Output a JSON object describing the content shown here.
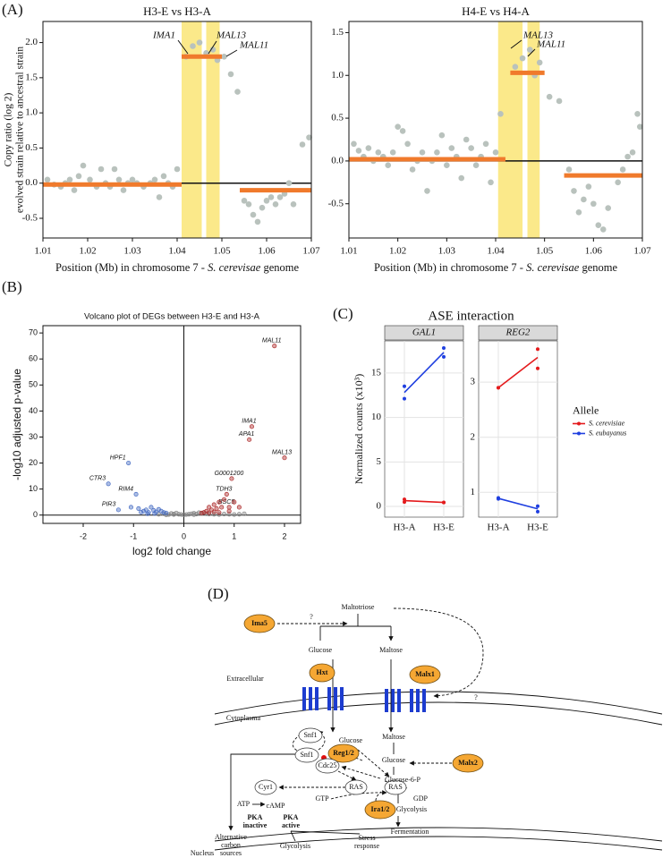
{
  "panel_labels": [
    "(A)",
    "(B)",
    "(C)",
    "(D)"
  ],
  "chart_data": [
    {
      "type": "scatter",
      "title": "H3-E vs H3-A",
      "x_label": [
        "Position (Mb) in chromosome 7 - ",
        "S. cerevisae",
        " genome"
      ],
      "y_label": [
        "Copy ratio (log 2)",
        "evolved strain relative to ancestral strain"
      ],
      "xlim": [
        1.01,
        1.07
      ],
      "ylim": [
        -0.78,
        2.3
      ],
      "xticks": [
        1.01,
        1.02,
        1.03,
        1.04,
        1.05,
        1.06,
        1.07
      ],
      "yticks": [
        -0.5,
        {
          "value": 0,
          "label": "0.0"
        },
        0.5,
        {
          "value": 1,
          "label": "1.0"
        },
        1.5,
        {
          "value": 2,
          "label": "2.0"
        }
      ],
      "hline": 0,
      "point_color": "#b9c2bd",
      "x": [
        1.011,
        1.0125,
        1.014,
        1.015,
        1.016,
        1.017,
        1.018,
        1.019,
        1.0205,
        1.022,
        1.023,
        1.024,
        1.025,
        1.026,
        1.027,
        1.028,
        1.029,
        1.03,
        1.031,
        1.0325,
        1.034,
        1.035,
        1.036,
        1.037,
        1.038,
        1.039,
        1.04,
        1.042,
        1.0435,
        1.045,
        1.0465,
        1.048,
        1.049,
        1.0505,
        1.052,
        1.0535,
        1.055,
        1.056,
        1.057,
        1.058,
        1.059,
        1.06,
        1.061,
        1.062,
        1.063,
        1.064,
        1.065,
        1.066,
        1.068,
        1.0695
      ],
      "y": [
        0.05,
        -0.02,
        -0.05,
        0.0,
        0.05,
        -0.1,
        0.1,
        0.25,
        0.05,
        -0.05,
        0.2,
        0.0,
        -0.05,
        0.2,
        0.05,
        -0.1,
        0.0,
        0.05,
        0.0,
        -0.05,
        0.0,
        0.05,
        -0.2,
        0.1,
        0.0,
        -0.05,
        0.2,
        1.8,
        1.95,
        2.0,
        1.85,
        1.9,
        1.75,
        1.8,
        1.55,
        1.3,
        -0.25,
        -0.3,
        -0.45,
        -0.55,
        -0.35,
        -0.25,
        -0.2,
        -0.3,
        -0.2,
        -0.15,
        0.0,
        -0.3,
        0.55,
        0.65
      ],
      "segments": {
        "color": "#f07a2c",
        "x0": [
          1.01,
          1.041,
          1.054
        ],
        "x1": [
          1.041,
          1.05,
          1.07
        ],
        "y": [
          -0.02,
          1.8,
          -0.1
        ]
      },
      "highlight": {
        "color": "#fbe98a",
        "x0": [
          1.041,
          1.0465
        ],
        "x1": [
          1.0455,
          1.0495
        ]
      },
      "annotations": [
        "IMA1",
        "MAL13",
        "MAL11"
      ]
    },
    {
      "type": "scatter",
      "title": "H4-E vs H4-A",
      "x_label": [
        "Position (Mb) in chromosome 7 - ",
        "S. cerevisae",
        " genome"
      ],
      "xlim": [
        1.01,
        1.07
      ],
      "ylim": [
        -0.9,
        1.63
      ],
      "xticks": [
        1.01,
        1.02,
        1.03,
        1.04,
        1.05,
        1.06,
        1.07
      ],
      "yticks": [
        -0.5,
        {
          "value": 0,
          "label": "0.0"
        },
        0.5,
        {
          "value": 1,
          "label": "1.0"
        },
        1.5
      ],
      "hline": 0,
      "point_color": "#b9c2bd",
      "x": [
        1.011,
        1.012,
        1.013,
        1.014,
        1.015,
        1.016,
        1.017,
        1.018,
        1.019,
        1.02,
        1.021,
        1.022,
        1.023,
        1.024,
        1.025,
        1.026,
        1.027,
        1.028,
        1.029,
        1.03,
        1.031,
        1.032,
        1.033,
        1.034,
        1.035,
        1.036,
        1.037,
        1.038,
        1.039,
        1.04,
        1.041,
        1.044,
        1.0455,
        1.047,
        1.048,
        1.049,
        1.051,
        1.053,
        1.055,
        1.056,
        1.057,
        1.058,
        1.059,
        1.06,
        1.061,
        1.062,
        1.063,
        1.065,
        1.066,
        1.067,
        1.068,
        1.069,
        1.0695
      ],
      "y": [
        0.2,
        0.12,
        0.05,
        0.15,
        0.0,
        0.1,
        0.05,
        -0.05,
        0.1,
        0.4,
        0.35,
        0.2,
        -0.1,
        0.0,
        0.1,
        -0.35,
        0.0,
        0.1,
        0.3,
        -0.05,
        0.15,
        0.05,
        -0.2,
        0.25,
        0.15,
        -0.05,
        0.05,
        0.2,
        -0.25,
        0.1,
        0.55,
        1.1,
        1.2,
        1.3,
        1.0,
        1.15,
        0.75,
        0.7,
        -0.1,
        -0.35,
        -0.6,
        -0.45,
        -0.3,
        -0.5,
        -0.75,
        -0.8,
        -0.55,
        -0.25,
        -0.1,
        0.05,
        0.1,
        0.55,
        0.4
      ],
      "segments": {
        "color": "#f07a2c",
        "x0": [
          1.01,
          1.043,
          1.054
        ],
        "x1": [
          1.042,
          1.05,
          1.07
        ],
        "y": [
          0.02,
          1.03,
          -0.17
        ]
      },
      "highlight": {
        "color": "#fbe98a",
        "x0": [
          1.0405,
          1.0465
        ],
        "x1": [
          1.0455,
          1.049
        ]
      },
      "annotations": [
        "MAL13",
        "MAL11"
      ]
    },
    {
      "type": "scatter",
      "title": "Volcano plot of DEGs between H3-E and H3-A",
      "x_label": "log2 fold change",
      "y_label": "-log10 adjusted p-value",
      "xlim": [
        -2.8,
        2.32
      ],
      "ylim": [
        -3.2,
        72.8
      ],
      "xticks": [
        -2,
        -1,
        0,
        1,
        2
      ],
      "yticks": [
        0,
        10,
        20,
        30,
        40,
        50,
        60,
        70
      ],
      "hline": 0,
      "vline": 0,
      "series": [
        {
          "color": "#888888",
          "x": [
            -0.5,
            -0.4,
            -0.3,
            -0.25,
            -0.2,
            -0.15,
            -0.1,
            -0.05,
            0,
            0.05,
            0.1,
            0.15,
            0.2,
            0.25,
            0.3,
            0.35,
            0.4,
            0.45,
            0.5,
            0.6,
            0.7,
            0.8,
            0.9,
            1.0,
            1.1,
            1.2,
            -0.35,
            -0.2,
            0.2
          ],
          "y": [
            0.3,
            0.5,
            0.2,
            0.6,
            0.4,
            0.8,
            0.3,
            0.2,
            0.1,
            0.2,
            0.3,
            0.5,
            0.7,
            0.4,
            0.9,
            0.6,
            1,
            0.5,
            0.4,
            0.3,
            0.2,
            0.4,
            0.3,
            0.2,
            0.3,
            0.5,
            0.1,
            0.2,
            0.15
          ]
        },
        {
          "color": "#4a6fc4",
          "x": [
            -1.1,
            -1.5,
            -0.95,
            -1.3,
            -1.05,
            -0.9,
            -0.8,
            -0.75,
            -0.7,
            -0.65,
            -0.6,
            -0.55,
            -0.5,
            -0.45,
            -0.4,
            -0.35,
            -0.58,
            -0.72,
            -0.85
          ],
          "y": [
            20,
            12,
            8,
            2,
            3,
            2.5,
            1.5,
            2,
            1,
            3,
            1.8,
            1.2,
            2.2,
            1.5,
            1,
            0.8,
            0.6,
            0.5,
            1.1
          ],
          "labels": [
            "HPF1",
            "CTR3",
            "RIM4",
            "PIR3",
            null,
            null,
            null,
            null,
            null,
            null,
            null,
            null,
            null,
            null,
            null,
            null,
            null,
            null,
            null
          ]
        },
        {
          "color": "#b03030",
          "x": [
            1.8,
            1.35,
            1.3,
            2.0,
            0.95,
            0.85,
            0.9,
            0.5,
            0.55,
            0.6,
            0.65,
            0.7,
            0.75,
            0.8,
            0.45,
            0.4,
            0.35,
            1.0,
            1.1,
            0.9,
            0.7,
            0.6,
            0.5
          ],
          "y": [
            65,
            34,
            29,
            22,
            14,
            8,
            3,
            3,
            2,
            4,
            2.5,
            5,
            3,
            6,
            1.5,
            1,
            0.8,
            5,
            3,
            1.5,
            1,
            1.2,
            0.9
          ],
          "labels": [
            "MAL11",
            "IMA1",
            "APA1",
            "MAL13",
            "G0001200",
            "TDH3",
            "BSC5",
            null,
            null,
            null,
            null,
            null,
            null,
            null,
            null,
            null,
            null,
            null,
            null,
            null,
            null,
            null,
            null
          ]
        }
      ]
    },
    {
      "type": "line",
      "title": "ASE interaction",
      "y_label": "Normalized counts (x10³)",
      "categories": [
        "H3-A",
        "H3-E"
      ],
      "grid": true,
      "legend": "right",
      "legend_title": "Allele",
      "series": [
        {
          "name": "S. cerevisiae",
          "color": "#e41a1c"
        },
        {
          "name": "S. eubayanus",
          "color": "#1f3fe0"
        }
      ],
      "facets": [
        {
          "title": "GAL1",
          "ylim": [
            -1.2,
            18.6
          ],
          "yticks": [
            0,
            5,
            10,
            15
          ],
          "series": [
            {
              "values": [
                0.65,
                0.45
              ],
              "replicates": [
                [
                  0.8,
                  0.5
                ],
                [
                  0.45,
                  0.45
                ]
              ]
            },
            {
              "values": [
                12.8,
                17.3
              ],
              "replicates": [
                [
                  13.5,
                  12.1
                ],
                [
                  17.8,
                  16.8
                ]
              ]
            }
          ]
        },
        {
          "title": "REG2",
          "ylim": [
            0.55,
            3.75
          ],
          "yticks": [
            1,
            2,
            3
          ],
          "series": [
            {
              "values": [
                2.9,
                3.45
              ],
              "replicates": [
                [
                  2.9,
                  2.9
                ],
                [
                  3.6,
                  3.25
                ]
              ]
            },
            {
              "values": [
                0.89,
                0.7
              ],
              "replicates": [
                [
                  0.9,
                  0.88
                ],
                [
                  0.75,
                  0.65
                ]
              ]
            }
          ]
        }
      ]
    }
  ],
  "diagram": {
    "maltotriose": "Maltotriose",
    "ima5": "Ima5",
    "question_1": "?",
    "question_2": "?",
    "glucose_out": "Glucose",
    "maltose_out": "Maltose",
    "hxt": "Hxt",
    "malx1": "Malx1",
    "extracellular": "Extracellular",
    "cytoplasma": "Cytoplasma",
    "snf1_a": "Snf1",
    "snf1_b": "Snf1",
    "reg12": "Reg1/2",
    "glucose_in": "Glucose",
    "maltose_in": "Maltose",
    "malx2": "Malx2",
    "glucose_from_maltose": "Glucose",
    "cdc25": "Cdc25",
    "glucose6p": "Glucose-6-P",
    "cyr1": "Cyr1",
    "ras_a": "RAS",
    "ras_b": "RAS",
    "atp": "ATP",
    "camp": "cAMP",
    "gtp": "GTP",
    "gdp": "GDP",
    "ira12": "Ira1/2",
    "glycolysis_cyto": "Glycolysis",
    "fermentation": "Fermentation",
    "pka_inactive": [
      "PKA",
      "inactive"
    ],
    "pka_active": [
      "PKA",
      "active"
    ],
    "nucleus": "Nucleus",
    "alt_carbon": [
      "Alternative",
      "carbon",
      "sources"
    ],
    "glycolysis_nuc": "Glycolysis",
    "stress_response": [
      "Stress",
      "response"
    ]
  }
}
